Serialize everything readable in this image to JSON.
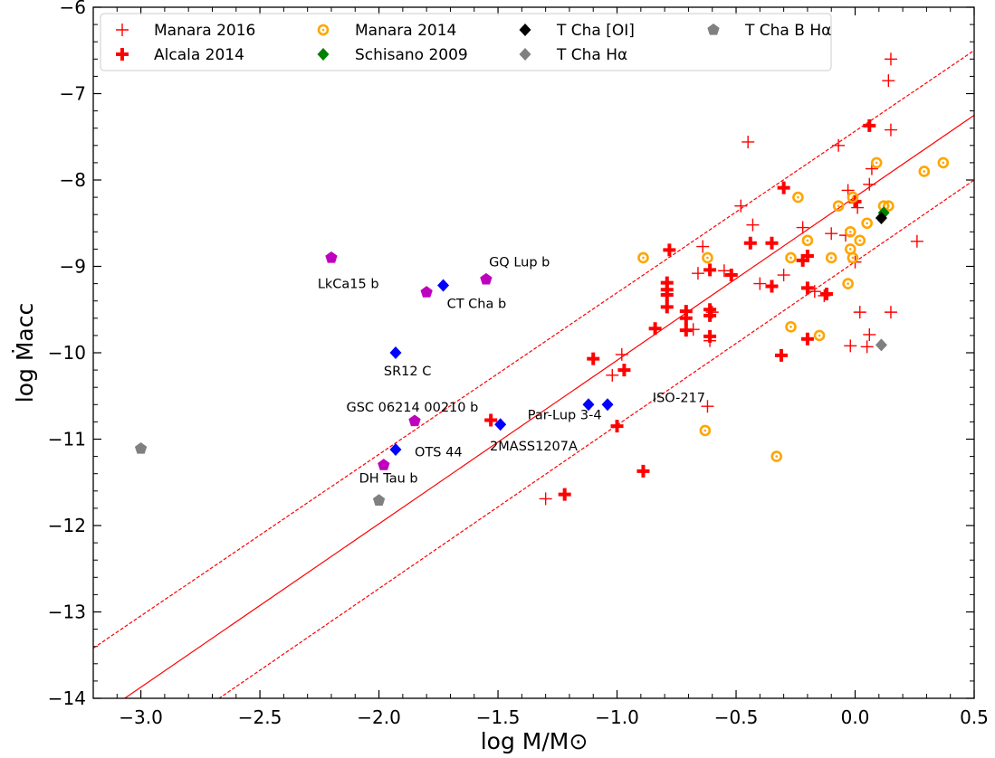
{
  "chart_data": {
    "type": "scatter",
    "xlabel": "log M/M⊙",
    "ylabel": "log Ṁacc",
    "xlim": [
      -3.2,
      0.5
    ],
    "ylim": [
      -14,
      -6
    ],
    "xticks": [
      -3.0,
      -2.5,
      -2.0,
      -1.5,
      -1.0,
      -0.5,
      0.0,
      0.5
    ],
    "xtick_labels": [
      "−3.0",
      "−2.5",
      "−2.0",
      "−1.5",
      "−1.0",
      "−0.5",
      "0.0",
      "0.5"
    ],
    "yticks": [
      -14,
      -13,
      -12,
      -11,
      -10,
      -9,
      -8,
      -7,
      -6
    ],
    "ytick_labels": [
      "−14",
      "−13",
      "−12",
      "−11",
      "−10",
      "−9",
      "−8",
      "−7",
      "−6"
    ],
    "legend_position": "top",
    "fit_lines": [
      {
        "style": "solid",
        "color": "#ff0000",
        "points": [
          [
            -3.2,
            -14.25
          ],
          [
            0.5,
            -7.25
          ]
        ]
      },
      {
        "style": "dashed",
        "color": "#ff0000",
        "points": [
          [
            -3.2,
            -13.42
          ],
          [
            0.5,
            -6.5
          ]
        ]
      },
      {
        "style": "dashed",
        "color": "#ff0000",
        "points": [
          [
            -3.2,
            -15.0
          ],
          [
            0.5,
            -8.0
          ]
        ]
      }
    ],
    "series": [
      {
        "name": "Manara 2016",
        "marker": "plus-thin",
        "color": "#ff0000",
        "points": [
          [
            0.15,
            -6.6
          ],
          [
            0.14,
            -6.85
          ],
          [
            0.15,
            -7.42
          ],
          [
            -0.45,
            -7.56
          ],
          [
            -0.07,
            -7.6
          ],
          [
            0.07,
            -7.87
          ],
          [
            0.06,
            -8.05
          ],
          [
            -0.03,
            -8.12
          ],
          [
            -0.48,
            -8.3
          ],
          [
            -0.43,
            -8.52
          ],
          [
            -0.22,
            -8.55
          ],
          [
            0.01,
            -8.32
          ],
          [
            -0.04,
            -8.64
          ],
          [
            0.0,
            -8.95
          ],
          [
            0.26,
            -8.71
          ],
          [
            -0.64,
            -8.77
          ],
          [
            -0.66,
            -9.08
          ],
          [
            -0.55,
            -9.05
          ],
          [
            -0.4,
            -9.2
          ],
          [
            -0.3,
            -9.1
          ],
          [
            -0.17,
            -9.29
          ],
          [
            -0.13,
            -9.34
          ],
          [
            -0.1,
            -8.62
          ],
          [
            -0.6,
            -9.53
          ],
          [
            -0.61,
            -9.86
          ],
          [
            -0.68,
            -9.73
          ],
          [
            0.02,
            -9.53
          ],
          [
            0.15,
            -9.53
          ],
          [
            0.06,
            -9.79
          ],
          [
            0.05,
            -9.93
          ],
          [
            -0.02,
            -9.92
          ],
          [
            -0.98,
            -10.02
          ],
          [
            -1.02,
            -10.26
          ],
          [
            -0.62,
            -10.62
          ],
          [
            -1.3,
            -11.69
          ]
        ]
      },
      {
        "name": "Alcala 2014",
        "marker": "plus-thick",
        "color": "#ff0000",
        "points": [
          [
            0.06,
            -7.37
          ],
          [
            -0.3,
            -8.09
          ],
          [
            0.0,
            -8.25
          ],
          [
            -0.2,
            -8.88
          ],
          [
            -0.78,
            -8.81
          ],
          [
            -0.44,
            -8.73
          ],
          [
            -0.35,
            -8.73
          ],
          [
            -0.22,
            -8.93
          ],
          [
            -0.61,
            -9.04
          ],
          [
            -0.52,
            -9.1
          ],
          [
            -0.79,
            -9.19
          ],
          [
            -0.79,
            -9.27
          ],
          [
            -0.79,
            -9.33
          ],
          [
            -0.35,
            -9.23
          ],
          [
            -0.2,
            -9.25
          ],
          [
            -0.12,
            -9.32
          ],
          [
            -0.71,
            -9.52
          ],
          [
            -0.71,
            -9.6
          ],
          [
            -0.61,
            -9.5
          ],
          [
            -0.61,
            -9.57
          ],
          [
            -0.79,
            -9.47
          ],
          [
            -0.84,
            -9.72
          ],
          [
            -0.71,
            -9.74
          ],
          [
            -0.61,
            -9.81
          ],
          [
            -0.2,
            -9.84
          ],
          [
            -0.31,
            -10.03
          ],
          [
            -1.1,
            -10.07
          ],
          [
            -0.97,
            -10.2
          ],
          [
            -1.53,
            -10.78
          ],
          [
            -1.0,
            -10.85
          ],
          [
            -0.89,
            -11.37
          ],
          [
            -1.22,
            -11.64
          ]
        ]
      },
      {
        "name": "Manara 2014",
        "marker": "circle-open",
        "color": "#ffa500",
        "points": [
          [
            0.09,
            -7.8
          ],
          [
            0.37,
            -7.8
          ],
          [
            0.29,
            -7.9
          ],
          [
            -0.24,
            -8.2
          ],
          [
            -0.01,
            -8.2
          ],
          [
            -0.07,
            -8.3
          ],
          [
            0.12,
            -8.3
          ],
          [
            0.14,
            -8.3
          ],
          [
            0.05,
            -8.5
          ],
          [
            -0.02,
            -8.6
          ],
          [
            0.02,
            -8.7
          ],
          [
            -0.2,
            -8.7
          ],
          [
            -0.02,
            -8.8
          ],
          [
            -0.62,
            -8.9
          ],
          [
            -0.27,
            -8.9
          ],
          [
            -0.01,
            -8.9
          ],
          [
            -0.1,
            -8.9
          ],
          [
            -0.89,
            -8.9
          ],
          [
            -0.03,
            -9.2
          ],
          [
            -0.27,
            -9.7
          ],
          [
            -0.15,
            -9.8
          ],
          [
            -0.63,
            -10.9
          ],
          [
            -0.33,
            -11.2
          ]
        ]
      },
      {
        "name": "Schisano 2009",
        "marker": "diamond",
        "color": "#008000",
        "points": [
          [
            0.12,
            -8.38
          ]
        ]
      },
      {
        "name": "T Cha [OI]",
        "marker": "diamond",
        "color": "#000000",
        "points": [
          [
            0.11,
            -8.44
          ]
        ]
      },
      {
        "name": "T Cha Hα",
        "marker": "diamond",
        "color": "#808080",
        "points": [
          [
            0.11,
            -9.91
          ]
        ]
      },
      {
        "name": "T Cha B Hα",
        "marker": "pentagon",
        "color": "#808080",
        "points": [
          [
            -3.0,
            -11.11
          ],
          [
            -2.0,
            -11.71
          ]
        ]
      },
      {
        "name": "",
        "marker": "diamond",
        "color": "#0000ff",
        "points": [
          [
            -1.73,
            -9.22
          ],
          [
            -1.93,
            -10.0
          ],
          [
            -1.93,
            -11.12
          ],
          [
            -1.12,
            -10.6
          ],
          [
            -1.04,
            -10.6
          ],
          [
            -1.49,
            -10.83
          ]
        ]
      },
      {
        "name": "",
        "marker": "pentagon",
        "color": "#bf00bf",
        "points": [
          [
            -2.2,
            -8.9
          ],
          [
            -1.8,
            -9.3
          ],
          [
            -1.55,
            -9.15
          ],
          [
            -1.85,
            -10.79
          ],
          [
            -1.98,
            -11.3
          ]
        ]
      }
    ],
    "annotations": [
      {
        "text": "LkCa15 b",
        "x": -2.0,
        "y": -9.25,
        "anchor": "end"
      },
      {
        "text": "CT Cha b",
        "x": -1.59,
        "y": -9.48,
        "anchor": "middle"
      },
      {
        "text": "GQ Lup b",
        "x": -1.41,
        "y": -9.0,
        "anchor": "middle"
      },
      {
        "text": "SR12 C",
        "x": -1.88,
        "y": -10.26,
        "anchor": "middle"
      },
      {
        "text": "GSC 06214 00210 b",
        "x": -1.86,
        "y": -10.68,
        "anchor": "middle"
      },
      {
        "text": "OTS 44",
        "x": -1.75,
        "y": -11.2,
        "anchor": "middle"
      },
      {
        "text": "DH Tau b",
        "x": -1.96,
        "y": -11.5,
        "anchor": "middle"
      },
      {
        "text": "2MASS1207A",
        "x": -1.35,
        "y": -11.13,
        "anchor": "middle"
      },
      {
        "text": "Par-Lup 3-4",
        "x": -1.22,
        "y": -10.77,
        "anchor": "middle"
      },
      {
        "text": "ISO-217",
        "x": -0.74,
        "y": -10.57,
        "anchor": "middle"
      }
    ]
  }
}
